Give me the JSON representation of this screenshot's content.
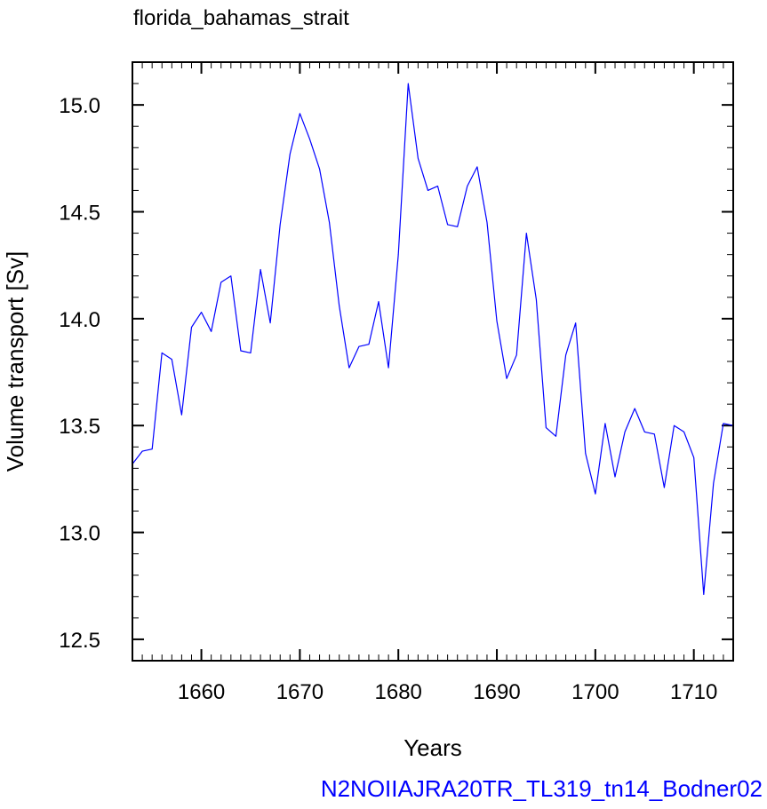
{
  "colors": {
    "series": "#0000ff",
    "caption": "#0000ff",
    "axis": "#000000"
  },
  "chart_data": {
    "type": "line",
    "title": "florida_bahamas_strait",
    "xlabel": "Years",
    "ylabel": "Volume transport [Sv]",
    "caption": "N2NOIIAJRA20TR_TL319_tn14_Bodner02",
    "xlim": [
      1653,
      1714
    ],
    "ylim": [
      12.4,
      15.2
    ],
    "xticks": [
      1660,
      1670,
      1680,
      1690,
      1700,
      1710
    ],
    "yticks": [
      12.5,
      13.0,
      13.5,
      14.0,
      14.5,
      15.0
    ],
    "ytick_labels": [
      "12.5",
      "13.0",
      "13.5",
      "14.0",
      "14.5",
      "15.0"
    ],
    "x_minor_step": 1,
    "y_minor_step": 0.1,
    "grid": false,
    "series": [
      {
        "x": [
          1653,
          1654,
          1655,
          1656,
          1657,
          1658,
          1659,
          1660,
          1661,
          1662,
          1663,
          1664,
          1665,
          1666,
          1667,
          1668,
          1669,
          1670,
          1671,
          1672,
          1673,
          1674,
          1675,
          1676,
          1677,
          1678,
          1679,
          1680,
          1681,
          1682,
          1683,
          1684,
          1685,
          1686,
          1687,
          1688,
          1689,
          1690,
          1691,
          1692,
          1693,
          1694,
          1695,
          1696,
          1697,
          1698,
          1699,
          1700,
          1701,
          1702,
          1703,
          1704,
          1705,
          1706,
          1707,
          1708,
          1709,
          1710,
          1711,
          1712,
          1713,
          1714
        ],
        "y": [
          13.32,
          13.38,
          13.39,
          13.84,
          13.81,
          13.55,
          13.96,
          14.03,
          13.94,
          14.17,
          14.2,
          13.85,
          13.84,
          14.23,
          13.98,
          14.44,
          14.77,
          14.96,
          14.84,
          14.7,
          14.45,
          14.06,
          13.77,
          13.87,
          13.88,
          14.08,
          13.77,
          14.3,
          15.1,
          14.75,
          14.6,
          14.62,
          14.44,
          14.43,
          14.62,
          14.71,
          14.45,
          13.99,
          13.72,
          13.83,
          14.4,
          14.09,
          13.49,
          13.45,
          13.83,
          13.98,
          13.37,
          13.18,
          13.51,
          13.26,
          13.47,
          13.58,
          13.47,
          13.46,
          13.21,
          13.5,
          13.47,
          13.35,
          12.71,
          13.23,
          13.51,
          13.5
        ]
      }
    ]
  }
}
